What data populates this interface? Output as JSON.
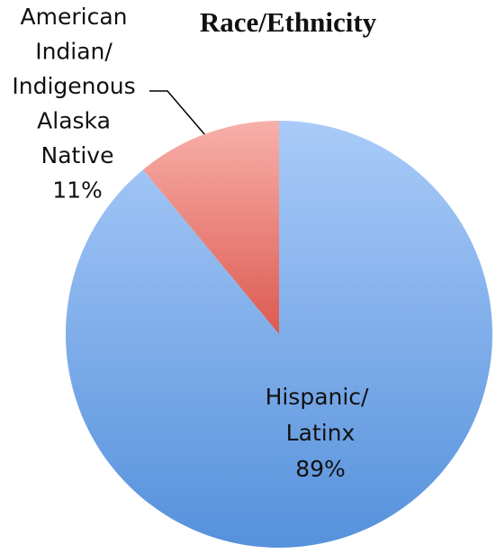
{
  "chart_data": {
    "type": "pie",
    "title": "Race/Ethnicity",
    "categories": [
      "Hispanic/ Latinx",
      "American Indian/ Indigenous Alaska Native"
    ],
    "values": [
      89,
      11
    ],
    "value_labels": [
      "89%",
      "11%"
    ],
    "colors": [
      [
        "#a9cbf8",
        "#5691dc"
      ],
      [
        "#f8b0aa",
        "#dc5a50"
      ]
    ]
  }
}
